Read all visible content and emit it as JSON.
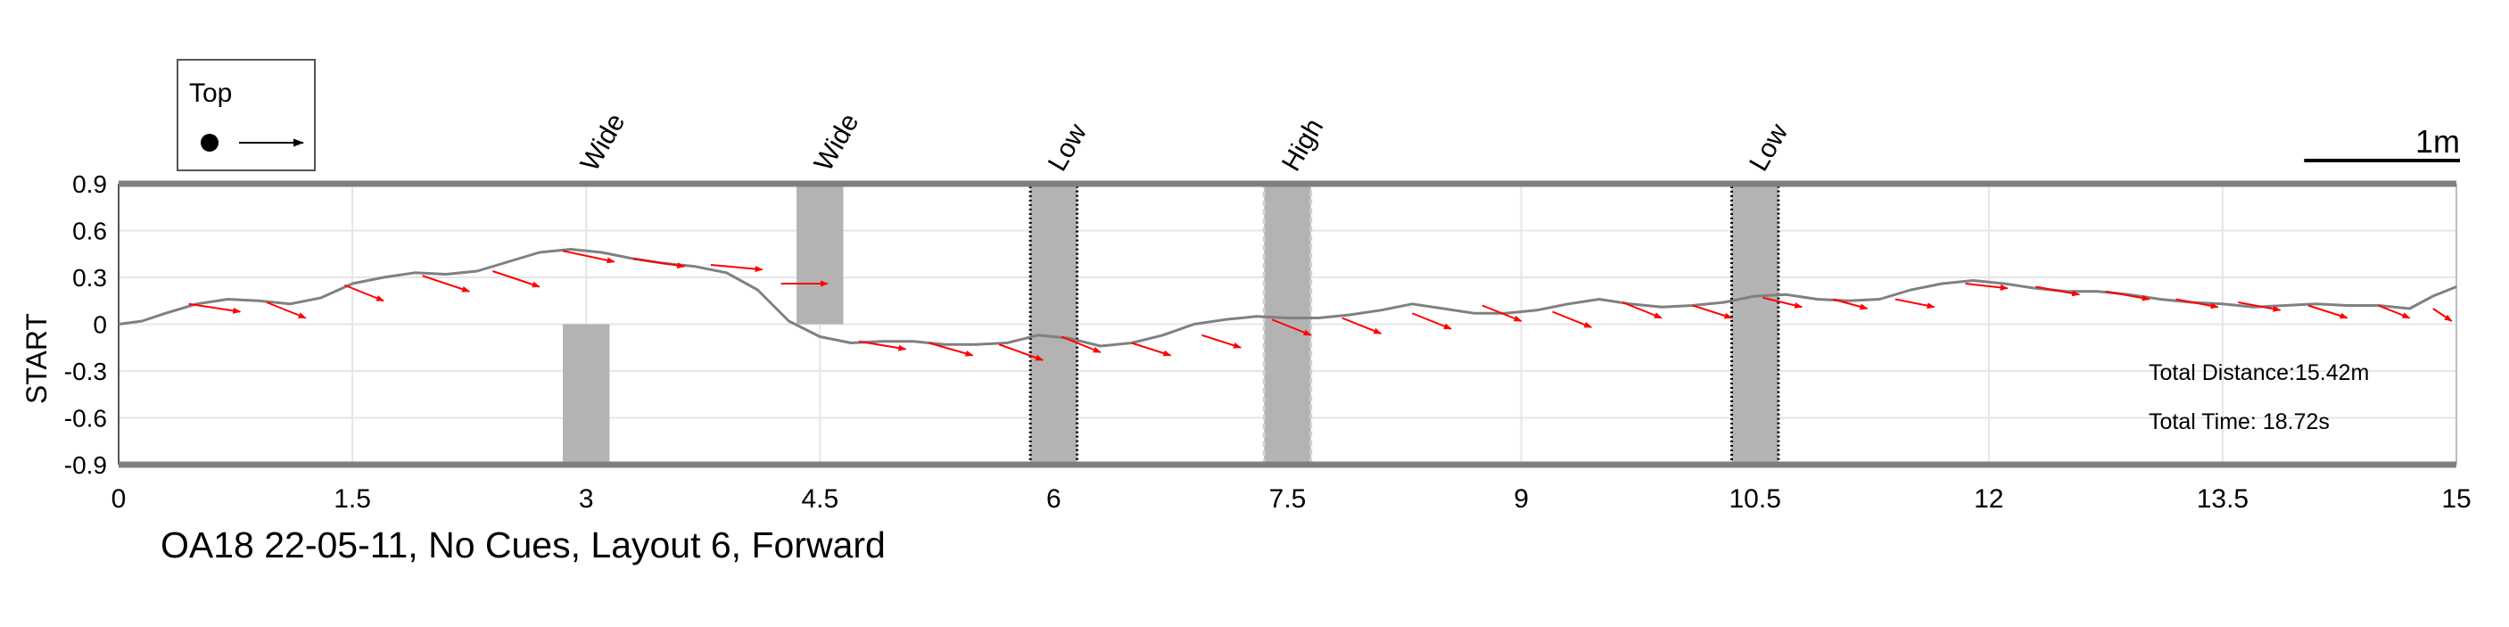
{
  "chart_data": {
    "type": "line",
    "title": "OA18 22-05-11, No Cues, Layout 6, Forward",
    "ylabel": "START",
    "xlabel": "",
    "xlim": [
      0,
      15
    ],
    "ylim": [
      -0.9,
      0.9
    ],
    "x_ticks": [
      "0",
      "1.5",
      "3",
      "4.5",
      "6",
      "7.5",
      "9",
      "10.5",
      "12",
      "13.5",
      "15"
    ],
    "y_ticks": [
      "0.9",
      "0.6",
      "0.3",
      "0",
      "-0.3",
      "-0.6",
      "-0.9"
    ],
    "grid": true,
    "series": [
      {
        "name": "path",
        "color": "#808080",
        "x": [
          0,
          0.15,
          0.3,
          0.5,
          0.7,
          0.9,
          1.1,
          1.3,
          1.5,
          1.7,
          1.9,
          2.1,
          2.3,
          2.5,
          2.7,
          2.9,
          3.1,
          3.3,
          3.5,
          3.7,
          3.9,
          4.1,
          4.3,
          4.5,
          4.7,
          4.9,
          5.1,
          5.3,
          5.5,
          5.7,
          5.9,
          6.1,
          6.3,
          6.5,
          6.7,
          6.9,
          7.1,
          7.3,
          7.5,
          7.7,
          7.9,
          8.1,
          8.3,
          8.5,
          8.7,
          8.9,
          9.1,
          9.3,
          9.5,
          9.7,
          9.9,
          10.1,
          10.3,
          10.5,
          10.7,
          10.9,
          11.1,
          11.3,
          11.5,
          11.7,
          11.9,
          12.1,
          12.3,
          12.5,
          12.7,
          12.9,
          13.1,
          13.3,
          13.5,
          13.7,
          13.9,
          14.1,
          14.3,
          14.5,
          14.7,
          14.85,
          15.0
        ],
        "y": [
          0.0,
          0.02,
          0.07,
          0.13,
          0.16,
          0.15,
          0.13,
          0.17,
          0.26,
          0.3,
          0.33,
          0.32,
          0.34,
          0.4,
          0.46,
          0.48,
          0.46,
          0.42,
          0.39,
          0.37,
          0.33,
          0.22,
          0.02,
          -0.08,
          -0.12,
          -0.11,
          -0.11,
          -0.13,
          -0.13,
          -0.12,
          -0.07,
          -0.09,
          -0.14,
          -0.12,
          -0.07,
          0.0,
          0.03,
          0.05,
          0.04,
          0.04,
          0.06,
          0.09,
          0.13,
          0.1,
          0.07,
          0.07,
          0.09,
          0.13,
          0.16,
          0.13,
          0.11,
          0.12,
          0.14,
          0.18,
          0.19,
          0.16,
          0.15,
          0.16,
          0.22,
          0.26,
          0.28,
          0.26,
          0.23,
          0.21,
          0.21,
          0.19,
          0.16,
          0.14,
          0.13,
          0.11,
          0.12,
          0.13,
          0.12,
          0.12,
          0.1,
          0.18,
          0.24
        ]
      },
      {
        "name": "heading-arrows",
        "color": "#ff0000",
        "x": [
          0.45,
          0.95,
          1.45,
          1.95,
          2.4,
          2.85,
          3.3,
          3.8,
          4.25,
          4.75,
          5.2,
          5.65,
          6.05,
          6.5,
          6.95,
          7.4,
          7.85,
          8.3,
          8.75,
          9.2,
          9.65,
          10.1,
          10.55,
          11.0,
          11.4,
          11.85,
          12.3,
          12.75,
          13.2,
          13.6,
          14.05,
          14.5,
          14.85
        ],
        "y": [
          0.13,
          0.14,
          0.25,
          0.31,
          0.34,
          0.47,
          0.42,
          0.38,
          0.26,
          -0.11,
          -0.12,
          -0.13,
          -0.08,
          -0.12,
          -0.07,
          0.03,
          0.04,
          0.07,
          0.12,
          0.08,
          0.14,
          0.12,
          0.17,
          0.16,
          0.16,
          0.26,
          0.24,
          0.21,
          0.16,
          0.14,
          0.12,
          0.12,
          0.1
        ],
        "dx": [
          0.33,
          0.25,
          0.25,
          0.3,
          0.3,
          0.33,
          0.33,
          0.33,
          0.3,
          0.3,
          0.28,
          0.28,
          0.25,
          0.25,
          0.25,
          0.25,
          0.25,
          0.25,
          0.25,
          0.25,
          0.25,
          0.25,
          0.25,
          0.22,
          0.25,
          0.27,
          0.28,
          0.28,
          0.27,
          0.27,
          0.25,
          0.2,
          0.12
        ],
        "dy": [
          -0.05,
          -0.1,
          -0.1,
          -0.1,
          -0.1,
          -0.07,
          -0.05,
          -0.03,
          0.0,
          -0.05,
          -0.08,
          -0.1,
          -0.1,
          -0.08,
          -0.08,
          -0.1,
          -0.1,
          -0.1,
          -0.1,
          -0.1,
          -0.1,
          -0.08,
          -0.06,
          -0.06,
          -0.05,
          -0.03,
          -0.05,
          -0.05,
          -0.05,
          -0.05,
          -0.08,
          -0.08,
          -0.08
        ]
      }
    ],
    "obstacles": [
      {
        "label": "Wide",
        "x": 3.0,
        "ymin": -0.9,
        "ymax": 0.0,
        "style": "solid"
      },
      {
        "label": "Wide",
        "x": 4.5,
        "ymin": 0.0,
        "ymax": 0.9,
        "style": "solid"
      },
      {
        "label": "Low",
        "x": 6.0,
        "ymin": -0.9,
        "ymax": 0.9,
        "style": "dotted"
      },
      {
        "label": "High",
        "x": 7.5,
        "ymin": -0.9,
        "ymax": 0.9,
        "style": "dashed"
      },
      {
        "label": "Low",
        "x": 10.5,
        "ymin": -0.9,
        "ymax": 0.9,
        "style": "dotted"
      }
    ],
    "obstacle_width": 0.3,
    "legend": {
      "label": "Top",
      "location": "top-left"
    },
    "scale_bar": {
      "label": "1m",
      "length": 1.0
    },
    "annotations": [
      "Total Distance:15.42m",
      "Total Time: 18.72s"
    ]
  },
  "colors": {
    "path": "#808080",
    "arrow": "#ff0000",
    "obstacle_fill": "#b3b3b3",
    "boundary": "#7f7f7f",
    "grid": "#e6e6e6"
  }
}
